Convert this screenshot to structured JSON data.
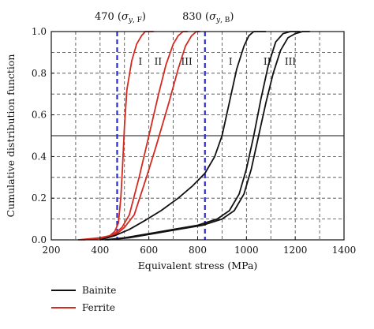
{
  "chart_data": {
    "type": "line",
    "xlabel": "Equivalent stress (MPa)",
    "ylabel": "Cumulative distribution function",
    "xlim": [
      200,
      1400
    ],
    "ylim": [
      0,
      1.0
    ],
    "xticks": [
      200,
      400,
      600,
      800,
      1000,
      1200,
      1400
    ],
    "yticks": [
      0.0,
      0.2,
      0.4,
      0.6,
      0.8,
      1.0
    ],
    "xtick_labels": [
      "200",
      "400",
      "600",
      "800",
      "1000",
      "1200",
      "1400"
    ],
    "ytick_labels": [
      "0.0",
      "0.2",
      "0.4",
      "0.6",
      "0.8",
      "1.0"
    ],
    "grid": "dashed",
    "legend_position": "bottom-left",
    "colors": {
      "Bainite": "#111111",
      "Ferrite": "#d42a20",
      "reference": "#2c2ccc"
    },
    "reference_lines": [
      {
        "x": 470,
        "label": "470 (σy, F)",
        "parts": [
          "470 (",
          "σ",
          "y",
          ", F",
          ")"
        ]
      },
      {
        "x": 830,
        "label": "830 (σy, B)",
        "parts": [
          "830 (",
          "σ",
          "y",
          ", B",
          ")"
        ]
      }
    ],
    "horizontal_reference": 0.5,
    "series": [
      {
        "name": "Ferrite",
        "case": "I",
        "x": [
          310,
          400,
          440,
          460,
          475,
          485,
          492,
          500,
          510,
          530,
          550,
          570,
          585,
          600,
          620
        ],
        "y": [
          0,
          0.01,
          0.02,
          0.04,
          0.08,
          0.2,
          0.35,
          0.55,
          0.72,
          0.86,
          0.94,
          0.98,
          1.0,
          1.0,
          1.0
        ]
      },
      {
        "name": "Ferrite",
        "case": "II",
        "x": [
          320,
          420,
          460,
          490,
          520,
          560,
          600,
          640,
          670,
          700,
          720,
          740,
          760
        ],
        "y": [
          0,
          0.01,
          0.03,
          0.06,
          0.12,
          0.3,
          0.5,
          0.7,
          0.84,
          0.94,
          0.98,
          1.0,
          1.0
        ]
      },
      {
        "name": "Ferrite",
        "case": "III",
        "x": [
          330,
          430,
          470,
          500,
          540,
          590,
          630,
          680,
          720,
          750,
          775,
          795,
          810
        ],
        "y": [
          0,
          0.01,
          0.03,
          0.06,
          0.12,
          0.3,
          0.45,
          0.65,
          0.82,
          0.93,
          0.98,
          1.0,
          1.0
        ]
      },
      {
        "name": "Bainite",
        "case": "I",
        "x": [
          400,
          460,
          520,
          580,
          650,
          720,
          780,
          830,
          870,
          900,
          930,
          960,
          990,
          1010,
          1030,
          1050,
          1080
        ],
        "y": [
          0,
          0.02,
          0.05,
          0.09,
          0.14,
          0.2,
          0.26,
          0.32,
          0.4,
          0.5,
          0.66,
          0.82,
          0.93,
          0.98,
          1.0,
          1.0,
          1.0
        ]
      },
      {
        "name": "Bainite",
        "case": "II",
        "x": [
          420,
          500,
          600,
          700,
          800,
          880,
          930,
          970,
          1000,
          1030,
          1060,
          1090,
          1120,
          1150,
          1180,
          1220
        ],
        "y": [
          0,
          0.01,
          0.03,
          0.05,
          0.07,
          0.1,
          0.14,
          0.22,
          0.34,
          0.5,
          0.68,
          0.84,
          0.95,
          0.99,
          1.0,
          1.0
        ]
      },
      {
        "name": "Bainite",
        "case": "III",
        "x": [
          430,
          520,
          620,
          720,
          820,
          900,
          950,
          990,
          1020,
          1050,
          1080,
          1110,
          1140,
          1170,
          1200,
          1230,
          1260
        ],
        "y": [
          0,
          0.01,
          0.03,
          0.05,
          0.07,
          0.1,
          0.14,
          0.22,
          0.34,
          0.5,
          0.66,
          0.8,
          0.91,
          0.97,
          0.99,
          1.0,
          1.0
        ]
      }
    ],
    "curve_labels": [
      {
        "text": "I",
        "series": "Ferrite",
        "x": 565,
        "y": 0.84
      },
      {
        "text": "II",
        "series": "Ferrite",
        "x": 638,
        "y": 0.84
      },
      {
        "text": "III",
        "series": "Ferrite",
        "x": 755,
        "y": 0.84
      },
      {
        "text": "I",
        "series": "Bainite",
        "x": 935,
        "y": 0.84
      },
      {
        "text": "II",
        "series": "Bainite",
        "x": 1085,
        "y": 0.84
      },
      {
        "text": "III",
        "series": "Bainite",
        "x": 1180,
        "y": 0.84
      }
    ],
    "legend": [
      {
        "label": "Bainite",
        "color": "#111111"
      },
      {
        "label": "Ferrite",
        "color": "#d42a20"
      }
    ]
  }
}
